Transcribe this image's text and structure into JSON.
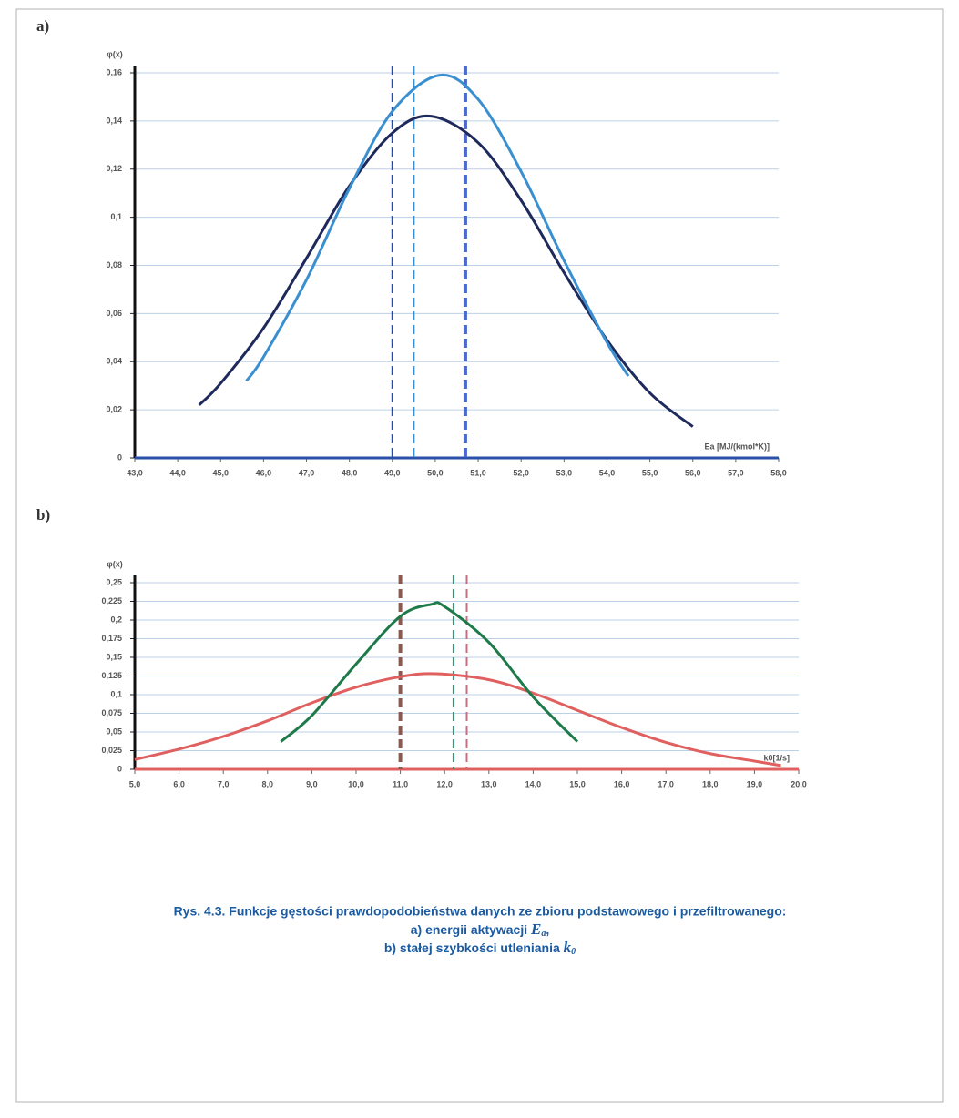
{
  "panels": [
    "a)",
    "b)"
  ],
  "chart_data": [
    {
      "type": "line",
      "y_label": "φ(x)",
      "x_label": "Ea [MJ/(kmol*K)]",
      "x_axis_color": "#2a50a8",
      "xlim": [
        43,
        58
      ],
      "xticks": [
        {
          "value": 43,
          "label": "43,0"
        },
        {
          "value": 44,
          "label": "44,0"
        },
        {
          "value": 45,
          "label": "45,0"
        },
        {
          "value": 46,
          "label": "46,0"
        },
        {
          "value": 47,
          "label": "47,0"
        },
        {
          "value": 48,
          "label": "48,0"
        },
        {
          "value": 49,
          "label": "49,0"
        },
        {
          "value": 50,
          "label": "50,0"
        },
        {
          "value": 51,
          "label": "51,0"
        },
        {
          "value": 52,
          "label": "52,0"
        },
        {
          "value": 53,
          "label": "53,0"
        },
        {
          "value": 54,
          "label": "54,0"
        },
        {
          "value": 55,
          "label": "55,0"
        },
        {
          "value": 56,
          "label": "56,0"
        },
        {
          "value": 57,
          "label": "57,0"
        },
        {
          "value": 58,
          "label": "58,0"
        }
      ],
      "ylim": [
        0,
        0.16
      ],
      "yticks": [
        0,
        {
          "value": 0.02,
          "label": "0,02"
        },
        {
          "value": 0.04,
          "label": "0,04"
        },
        {
          "value": 0.06,
          "label": "0,06"
        },
        {
          "value": 0.08,
          "label": "0,08"
        },
        {
          "value": 0.1,
          "label": "0,1"
        },
        {
          "value": 0.12,
          "label": "0,12"
        },
        {
          "value": 0.14,
          "label": "0,14"
        },
        {
          "value": 0.16,
          "label": "0,16"
        }
      ],
      "grid": true,
      "series": [
        {
          "color": "#1f2a5c",
          "x": [
            44.5,
            45,
            46,
            47,
            48,
            49,
            49.9,
            51,
            52,
            53,
            54,
            55,
            56
          ],
          "values": [
            0.022,
            0.031,
            0.054,
            0.083,
            0.113,
            0.135,
            0.142,
            0.131,
            0.107,
            0.077,
            0.049,
            0.027,
            0.013
          ]
        },
        {
          "color": "#3a8fd0",
          "x": [
            45.6,
            46,
            47,
            48,
            49,
            50.1,
            51,
            52,
            53,
            54,
            54.5
          ],
          "values": [
            0.032,
            0.042,
            0.074,
            0.112,
            0.144,
            0.159,
            0.149,
            0.119,
            0.082,
            0.048,
            0.034
          ]
        }
      ],
      "vlines": [
        {
          "value": 49.0,
          "color": "#2a4a9a",
          "width": 2
        },
        {
          "value": 49.5,
          "color": "#3a8fd0",
          "width": 2
        },
        {
          "value": 50.7,
          "color": "#4a6ad0",
          "width": 4
        }
      ]
    },
    {
      "type": "line",
      "y_label": "φ(x)",
      "x_label": "k0[1/s]",
      "x_axis_color": "#e06060",
      "xlim": [
        5,
        20
      ],
      "xticks": [
        {
          "value": 5,
          "label": "5,0"
        },
        {
          "value": 6,
          "label": "6,0"
        },
        {
          "value": 7,
          "label": "7,0"
        },
        {
          "value": 8,
          "label": "8,0"
        },
        {
          "value": 9,
          "label": "9,0"
        },
        {
          "value": 10,
          "label": "10,0"
        },
        {
          "value": 11,
          "label": "11,0"
        },
        {
          "value": 12,
          "label": "12,0"
        },
        {
          "value": 13,
          "label": "13,0"
        },
        {
          "value": 14,
          "label": "14,0"
        },
        {
          "value": 15,
          "label": "15,0"
        },
        {
          "value": 16,
          "label": "16,0"
        },
        {
          "value": 17,
          "label": "17,0"
        },
        {
          "value": 18,
          "label": "18,0"
        },
        {
          "value": 19,
          "label": "19,0"
        },
        {
          "value": 20,
          "label": "20,0"
        }
      ],
      "ylim": [
        0,
        0.25
      ],
      "yticks": [
        0,
        {
          "value": 0.025,
          "label": "0,025"
        },
        {
          "value": 0.05,
          "label": "0,05"
        },
        {
          "value": 0.075,
          "label": "0,075"
        },
        {
          "value": 0.1,
          "label": "0,1"
        },
        {
          "value": 0.125,
          "label": "0,125"
        },
        {
          "value": 0.15,
          "label": "0,15"
        },
        {
          "value": 0.175,
          "label": "0,175"
        },
        {
          "value": 0.2,
          "label": "0,2"
        },
        {
          "value": 0.225,
          "label": "0,225"
        },
        {
          "value": 0.25,
          "label": "0,25"
        }
      ],
      "grid": true,
      "series": [
        {
          "color": "#e06060",
          "x": [
            5,
            6,
            7,
            8,
            9,
            10,
            11,
            11.8,
            13,
            14,
            15,
            16,
            17,
            18,
            19,
            19.6
          ],
          "values": [
            0.013,
            0.027,
            0.044,
            0.065,
            0.089,
            0.11,
            0.124,
            0.128,
            0.12,
            0.102,
            0.079,
            0.056,
            0.036,
            0.021,
            0.011,
            0.005
          ]
        },
        {
          "color": "#1f7a4a",
          "x": [
            8.3,
            9,
            10,
            11,
            11.7,
            12,
            13,
            14,
            15
          ],
          "values": [
            0.037,
            0.072,
            0.141,
            0.205,
            0.221,
            0.218,
            0.17,
            0.097,
            0.037
          ]
        }
      ],
      "vlines": [
        {
          "value": 11.0,
          "color": "#8a5a50",
          "width": 4
        },
        {
          "value": 12.2,
          "color": "#2a9a6a",
          "width": 2
        },
        {
          "value": 12.5,
          "color": "#c07080",
          "width": 2
        }
      ]
    }
  ],
  "caption": {
    "line1": "Rys. 4.3. Funkcje gęstości prawdopodobieństwa danych ze zbioru podstawowego i przefiltrowanego:",
    "line2_text": "a) energii aktywacji",
    "line2_symbol": "E",
    "line2_sub": "a",
    "line2_tail": ",",
    "line3_text": "b) stałej szybkości utleniania",
    "line3_symbol": "k",
    "line3_sub": "0"
  }
}
